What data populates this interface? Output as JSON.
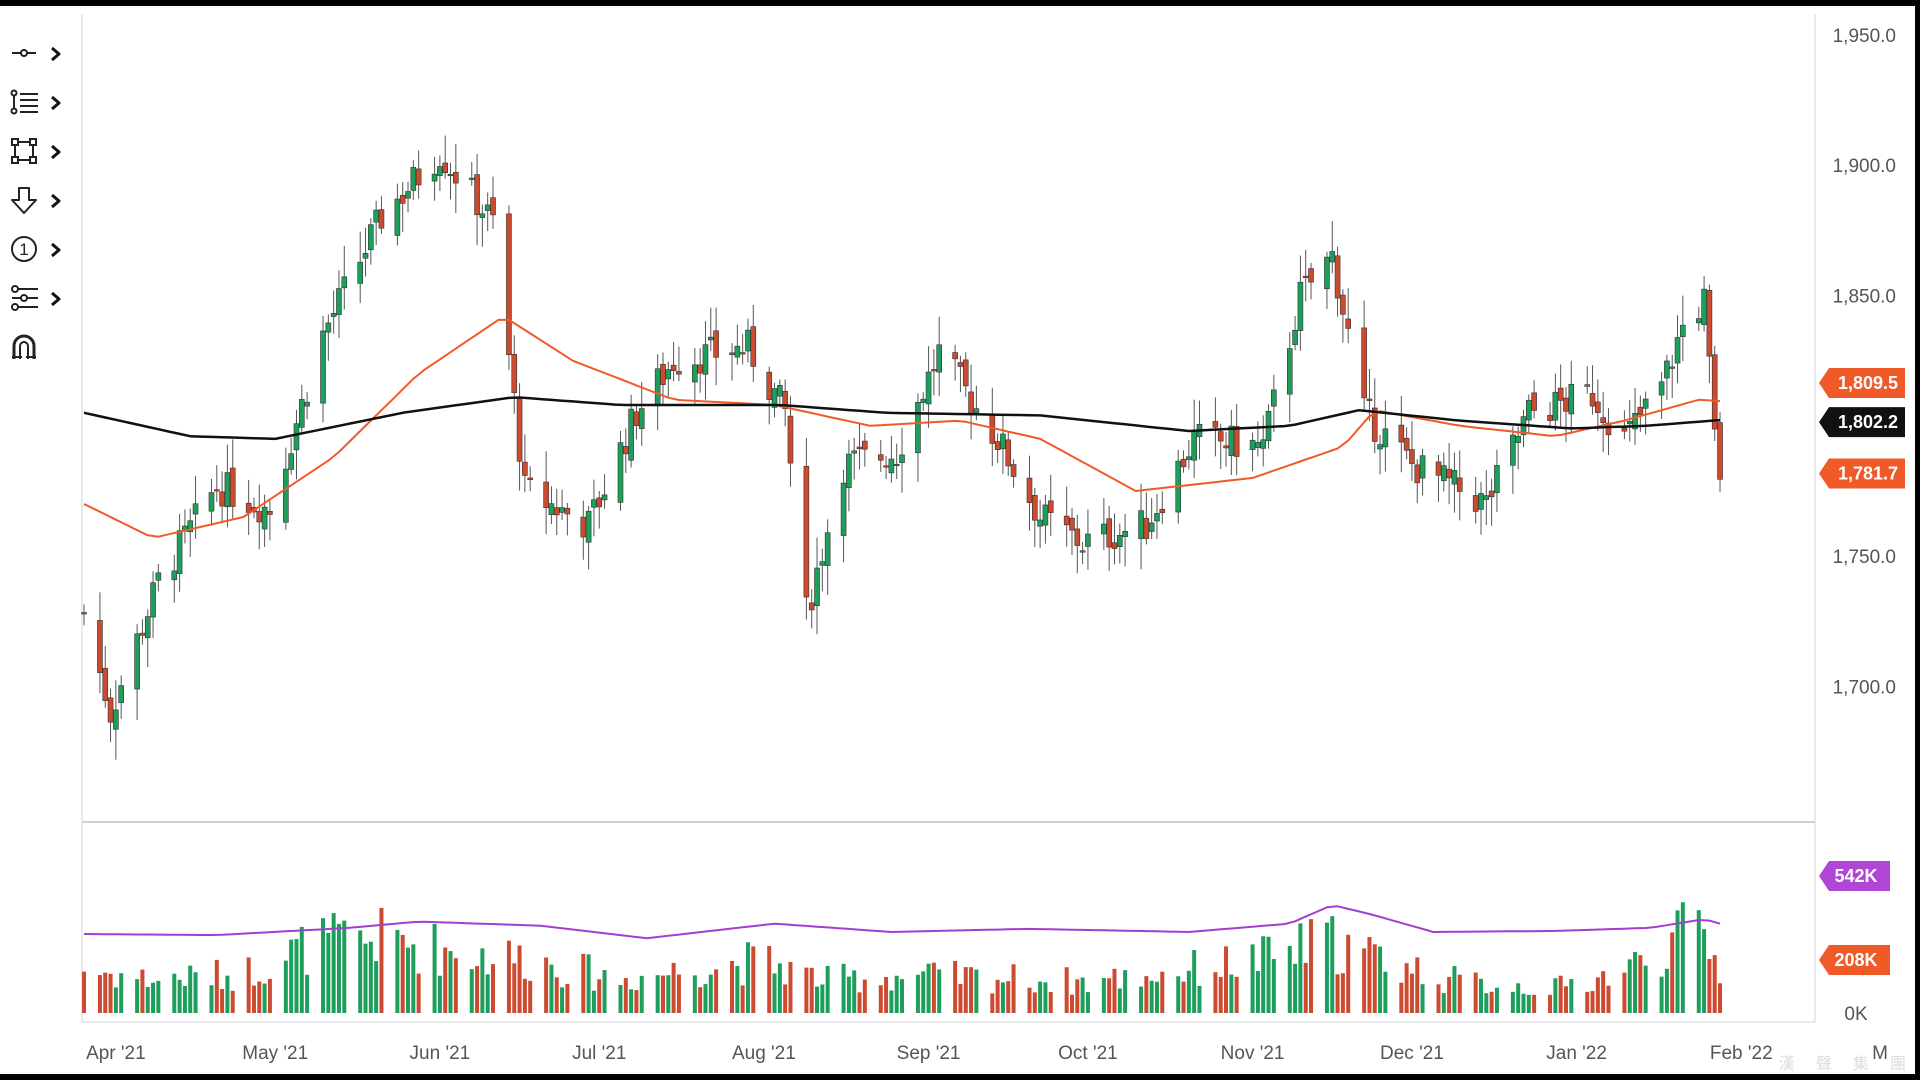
{
  "toolbar": {
    "items": [
      {
        "icon": "line-tool-icon"
      },
      {
        "icon": "fib-list-icon"
      },
      {
        "icon": "rectangle-tool-icon"
      },
      {
        "icon": "arrow-down-icon"
      },
      {
        "icon": "numbered-marker-icon"
      },
      {
        "icon": "forecast-tool-icon"
      },
      {
        "icon": "magnet-icon"
      }
    ]
  },
  "watermark": {
    "text": "漢 聲 集 團"
  },
  "colors": {
    "up": "#1e9e5b",
    "down": "#cc4a30",
    "ma_fast": "#f05a28",
    "ma_slow": "#111111",
    "volume_avg": "#a23fd1",
    "volume_tag": "#b146d6",
    "price_tag": "#f05a28"
  },
  "chart_data": [
    {
      "type": "candlestick",
      "x_range": [
        "2021-03-26",
        "2022-03-01"
      ],
      "x_tick_labels": [
        "Apr '21",
        "May '21",
        "Jun '21",
        "Jul '21",
        "Aug '21",
        "Sep '21",
        "Oct '21",
        "Nov '21",
        "Dec '21",
        "Jan '22",
        "Feb '22",
        "M"
      ],
      "y_tick_labels": [
        "1,950.0",
        "1,900.0",
        "1,850.0",
        "1,750.0",
        "1,700.0"
      ],
      "ylim": [
        1648,
        1958
      ],
      "grid": false,
      "markers": [
        {
          "label": "1,809.5",
          "value": 1809.5,
          "color": "#f05a28"
        },
        {
          "label": "1,802.2",
          "value": 1802.2,
          "color": "#111111"
        },
        {
          "label": "1,781.7",
          "value": 1781.7,
          "color": "#f05a28"
        }
      ],
      "monthly_path": [
        {
          "date": "2021-03-26",
          "close": 1728
        },
        {
          "date": "2021-03-31",
          "close": 1690
        },
        {
          "date": "2021-04-09",
          "close": 1740
        },
        {
          "date": "2021-04-20",
          "close": 1777
        },
        {
          "date": "2021-04-30",
          "close": 1768
        },
        {
          "date": "2021-05-10",
          "close": 1835
        },
        {
          "date": "2021-05-21",
          "close": 1880
        },
        {
          "date": "2021-06-01",
          "close": 1905
        },
        {
          "date": "2021-06-11",
          "close": 1878
        },
        {
          "date": "2021-06-17",
          "close": 1775
        },
        {
          "date": "2021-06-29",
          "close": 1762
        },
        {
          "date": "2021-07-08",
          "close": 1805
        },
        {
          "date": "2021-07-15",
          "close": 1825
        },
        {
          "date": "2021-07-29",
          "close": 1830
        },
        {
          "date": "2021-08-05",
          "close": 1805
        },
        {
          "date": "2021-08-09",
          "close": 1728
        },
        {
          "date": "2021-08-16",
          "close": 1785
        },
        {
          "date": "2021-08-26",
          "close": 1790
        },
        {
          "date": "2021-09-03",
          "close": 1828
        },
        {
          "date": "2021-09-14",
          "close": 1795
        },
        {
          "date": "2021-09-22",
          "close": 1765
        },
        {
          "date": "2021-09-30",
          "close": 1755
        },
        {
          "date": "2021-10-12",
          "close": 1762
        },
        {
          "date": "2021-10-21",
          "close": 1795
        },
        {
          "date": "2021-11-03",
          "close": 1792
        },
        {
          "date": "2021-11-10",
          "close": 1850
        },
        {
          "date": "2021-11-16",
          "close": 1865
        },
        {
          "date": "2021-11-22",
          "close": 1805
        },
        {
          "date": "2021-12-01",
          "close": 1785
        },
        {
          "date": "2021-12-15",
          "close": 1770
        },
        {
          "date": "2021-12-23",
          "close": 1805
        },
        {
          "date": "2022-01-04",
          "close": 1812
        },
        {
          "date": "2022-01-10",
          "close": 1795
        },
        {
          "date": "2022-01-17",
          "close": 1815
        },
        {
          "date": "2022-01-21",
          "close": 1838
        },
        {
          "date": "2022-01-25",
          "close": 1848
        },
        {
          "date": "2022-01-27",
          "close": 1795
        },
        {
          "date": "2022-01-28",
          "close": 1782
        }
      ],
      "series": [
        {
          "name": "",
          "kind": "moving-average",
          "color": "#f05a28",
          "points": [
            {
              "date": "2021-03-26",
              "value": 1770
            },
            {
              "date": "2021-04-08",
              "value": 1757
            },
            {
              "date": "2021-04-25",
              "value": 1765
            },
            {
              "date": "2021-05-12",
              "value": 1788
            },
            {
              "date": "2021-05-28",
              "value": 1820
            },
            {
              "date": "2021-06-13",
              "value": 1842
            },
            {
              "date": "2021-06-26",
              "value": 1825
            },
            {
              "date": "2021-07-15",
              "value": 1810
            },
            {
              "date": "2021-08-03",
              "value": 1808
            },
            {
              "date": "2021-08-21",
              "value": 1800
            },
            {
              "date": "2021-09-07",
              "value": 1802
            },
            {
              "date": "2021-09-22",
              "value": 1795
            },
            {
              "date": "2021-10-10",
              "value": 1775
            },
            {
              "date": "2021-11-01",
              "value": 1780
            },
            {
              "date": "2021-11-18",
              "value": 1792
            },
            {
              "date": "2021-11-24",
              "value": 1806
            },
            {
              "date": "2021-12-10",
              "value": 1800
            },
            {
              "date": "2021-12-28",
              "value": 1796
            },
            {
              "date": "2022-01-10",
              "value": 1802
            },
            {
              "date": "2022-01-24",
              "value": 1810
            },
            {
              "date": "2022-01-28",
              "value": 1809.5
            }
          ]
        },
        {
          "name": "",
          "kind": "moving-average",
          "color": "#111111",
          "points": [
            {
              "date": "2021-03-26",
              "value": 1805
            },
            {
              "date": "2021-04-15",
              "value": 1796
            },
            {
              "date": "2021-05-01",
              "value": 1795
            },
            {
              "date": "2021-05-25",
              "value": 1805
            },
            {
              "date": "2021-06-15",
              "value": 1811
            },
            {
              "date": "2021-07-05",
              "value": 1808
            },
            {
              "date": "2021-08-04",
              "value": 1808
            },
            {
              "date": "2021-08-24",
              "value": 1805
            },
            {
              "date": "2021-09-22",
              "value": 1804
            },
            {
              "date": "2021-10-20",
              "value": 1798
            },
            {
              "date": "2021-11-08",
              "value": 1800
            },
            {
              "date": "2021-11-21",
              "value": 1806
            },
            {
              "date": "2021-12-10",
              "value": 1802
            },
            {
              "date": "2021-12-31",
              "value": 1799
            },
            {
              "date": "2022-01-14",
              "value": 1800
            },
            {
              "date": "2022-01-28",
              "value": 1802.2
            }
          ]
        }
      ]
    },
    {
      "type": "bar",
      "title": "",
      "y_tick_labels": [
        "0K"
      ],
      "markers": [
        {
          "label": "542K",
          "value": 542000,
          "color": "#b146d6"
        },
        {
          "label": "208K",
          "value": 208000,
          "color": "#f05a28"
        }
      ],
      "ylim": [
        0,
        900000
      ],
      "volume_profile": [
        {
          "date": "2021-03-26",
          "value": 210000
        },
        {
          "date": "2021-04-08",
          "value": 160000
        },
        {
          "date": "2021-04-25",
          "value": 190000
        },
        {
          "date": "2021-05-08",
          "value": 330000
        },
        {
          "date": "2021-05-22",
          "value": 360000
        },
        {
          "date": "2021-06-05",
          "value": 290000
        },
        {
          "date": "2021-06-18",
          "value": 260000
        },
        {
          "date": "2021-07-05",
          "value": 160000
        },
        {
          "date": "2021-07-20",
          "value": 220000
        },
        {
          "date": "2021-08-01",
          "value": 250000
        },
        {
          "date": "2021-08-12",
          "value": 160000
        },
        {
          "date": "2021-08-28",
          "value": 180000
        },
        {
          "date": "2021-09-15",
          "value": 170000
        },
        {
          "date": "2021-10-01",
          "value": 150000
        },
        {
          "date": "2021-10-18",
          "value": 200000
        },
        {
          "date": "2021-11-05",
          "value": 270000
        },
        {
          "date": "2021-11-15",
          "value": 350000
        },
        {
          "date": "2021-11-25",
          "value": 260000
        },
        {
          "date": "2021-12-10",
          "value": 150000
        },
        {
          "date": "2021-12-28",
          "value": 120000
        },
        {
          "date": "2022-01-10",
          "value": 200000
        },
        {
          "date": "2022-01-24",
          "value": 420000
        },
        {
          "date": "2022-01-28",
          "value": 208000
        }
      ],
      "series": [
        {
          "name": "",
          "kind": "volume-average",
          "color": "#a23fd1",
          "points": [
            {
              "date": "2021-03-26",
              "value": 380000
            },
            {
              "date": "2021-04-20",
              "value": 375000
            },
            {
              "date": "2021-05-15",
              "value": 410000
            },
            {
              "date": "2021-05-28",
              "value": 440000
            },
            {
              "date": "2021-06-20",
              "value": 420000
            },
            {
              "date": "2021-07-10",
              "value": 360000
            },
            {
              "date": "2021-08-03",
              "value": 430000
            },
            {
              "date": "2021-08-25",
              "value": 390000
            },
            {
              "date": "2021-09-20",
              "value": 405000
            },
            {
              "date": "2021-10-20",
              "value": 390000
            },
            {
              "date": "2021-11-08",
              "value": 430000
            },
            {
              "date": "2021-11-16",
              "value": 520000
            },
            {
              "date": "2021-11-24",
              "value": 470000
            },
            {
              "date": "2021-12-05",
              "value": 390000
            },
            {
              "date": "2021-12-28",
              "value": 395000
            },
            {
              "date": "2022-01-15",
              "value": 410000
            },
            {
              "date": "2022-01-25",
              "value": 452000
            },
            {
              "date": "2022-01-28",
              "value": 430000
            }
          ]
        }
      ]
    }
  ]
}
